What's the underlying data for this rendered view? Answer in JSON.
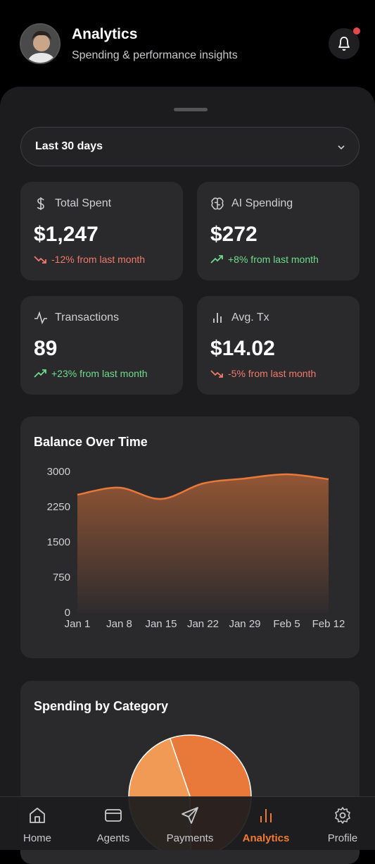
{
  "header": {
    "title": "Analytics",
    "subtitle": "Spending & performance insights"
  },
  "filter": {
    "label": "Last 30 days"
  },
  "stats": [
    {
      "label": "Total Spent",
      "value": "$1,247",
      "change": "-12% from last month"
    },
    {
      "label": "AI Spending",
      "value": "$272",
      "change": "+8% from last month"
    },
    {
      "label": "Transactions",
      "value": "89",
      "change": "+23% from last month"
    },
    {
      "label": "Avg. Tx",
      "value": "$14.02",
      "change": "-5% from last month"
    }
  ],
  "chart_data": [
    {
      "type": "area",
      "title": "Balance Over Time",
      "categories": [
        "Jan 1",
        "Jan 8",
        "Jan 15",
        "Jan 22",
        "Jan 29",
        "Feb 5",
        "Feb 12"
      ],
      "values": [
        2520,
        2670,
        2430,
        2760,
        2865,
        2955,
        2850
      ],
      "color": "#e8793a",
      "ylim": [
        0,
        3000
      ],
      "yticks": [
        0,
        750,
        1500,
        2250,
        3000
      ],
      "grid": false
    },
    {
      "type": "pie",
      "title": "Spending by Category",
      "values": [
        55,
        45
      ],
      "colors": [
        "#e8793a",
        "#f09a55"
      ]
    }
  ],
  "nav": {
    "items": [
      "Home",
      "Agents",
      "Payments",
      "Analytics",
      "Profile"
    ],
    "active": 3
  }
}
